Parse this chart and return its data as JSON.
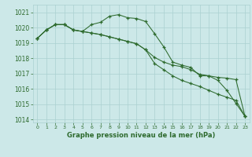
{
  "title": "Graphe pression niveau de la mer (hPa)",
  "background_color": "#cce8e8",
  "grid_color": "#aad0d0",
  "line_color": "#2d6a2d",
  "xlim": [
    -0.5,
    23.5
  ],
  "ylim": [
    1013.8,
    1021.5
  ],
  "yticks": [
    1014,
    1015,
    1016,
    1017,
    1018,
    1019,
    1020,
    1021
  ],
  "xticks": [
    0,
    1,
    2,
    3,
    4,
    5,
    6,
    7,
    8,
    9,
    10,
    11,
    12,
    13,
    14,
    15,
    16,
    17,
    18,
    19,
    20,
    21,
    22,
    23
  ],
  "line1": [
    1019.3,
    1019.85,
    1020.2,
    1020.2,
    1019.85,
    1019.75,
    1020.2,
    1020.35,
    1020.75,
    1020.85,
    1020.65,
    1020.6,
    1020.4,
    1019.6,
    1018.75,
    1017.75,
    1017.55,
    1017.4,
    1016.85,
    1016.85,
    1016.55,
    1015.9,
    1015.05,
    1014.2
  ],
  "line2": [
    1019.3,
    1019.85,
    1020.2,
    1020.2,
    1019.85,
    1019.75,
    1019.65,
    1019.55,
    1019.4,
    1019.25,
    1019.1,
    1018.95,
    1018.55,
    1018.05,
    1017.75,
    1017.55,
    1017.45,
    1017.25,
    1016.95,
    1016.85,
    1016.75,
    1016.7,
    1016.6,
    1014.2
  ],
  "line3": [
    1019.3,
    1019.85,
    1020.2,
    1020.2,
    1019.85,
    1019.75,
    1019.65,
    1019.55,
    1019.4,
    1019.25,
    1019.1,
    1018.95,
    1018.55,
    1017.65,
    1017.25,
    1016.85,
    1016.55,
    1016.35,
    1016.15,
    1015.9,
    1015.65,
    1015.45,
    1015.25,
    1014.2
  ]
}
